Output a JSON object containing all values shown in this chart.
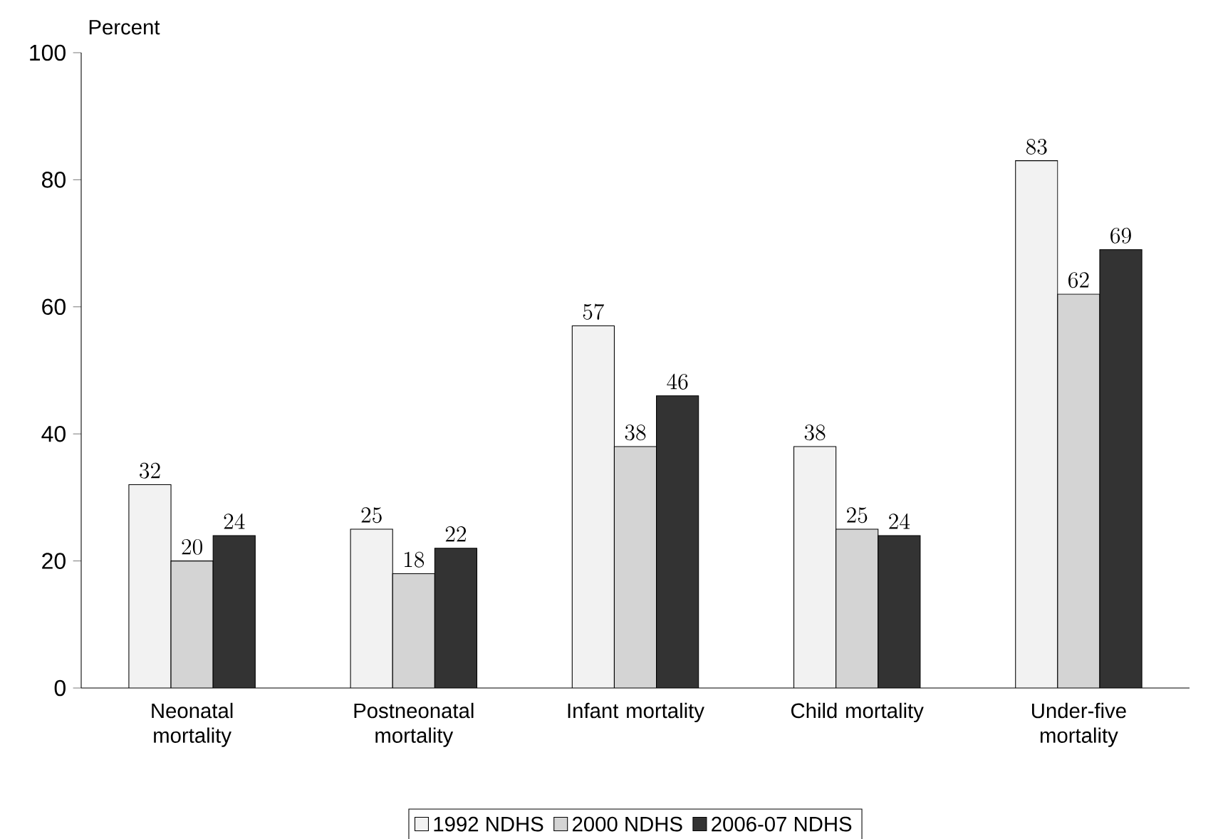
{
  "chart_data": {
    "type": "bar",
    "ylabel": "Percent",
    "categories": [
      "Neonatal mortality",
      "Postneonatal mortality",
      "Infant mortality",
      "Child mortality",
      "Under-five mortality"
    ],
    "series": [
      {
        "name": "1992 NDHS",
        "color": "#f2f2f2",
        "values": [
          32,
          25,
          57,
          38,
          83
        ]
      },
      {
        "name": "2000 NDHS",
        "color": "#d4d4d4",
        "values": [
          20,
          18,
          38,
          25,
          62
        ]
      },
      {
        "name": "2006-07 NDHS",
        "color": "#333333",
        "values": [
          24,
          22,
          46,
          24,
          69
        ]
      }
    ],
    "ylim": [
      0,
      100
    ],
    "yticks": [
      0,
      20,
      40,
      60,
      80,
      100
    ],
    "data_labels": true,
    "grid": false,
    "legend": "bottom"
  }
}
